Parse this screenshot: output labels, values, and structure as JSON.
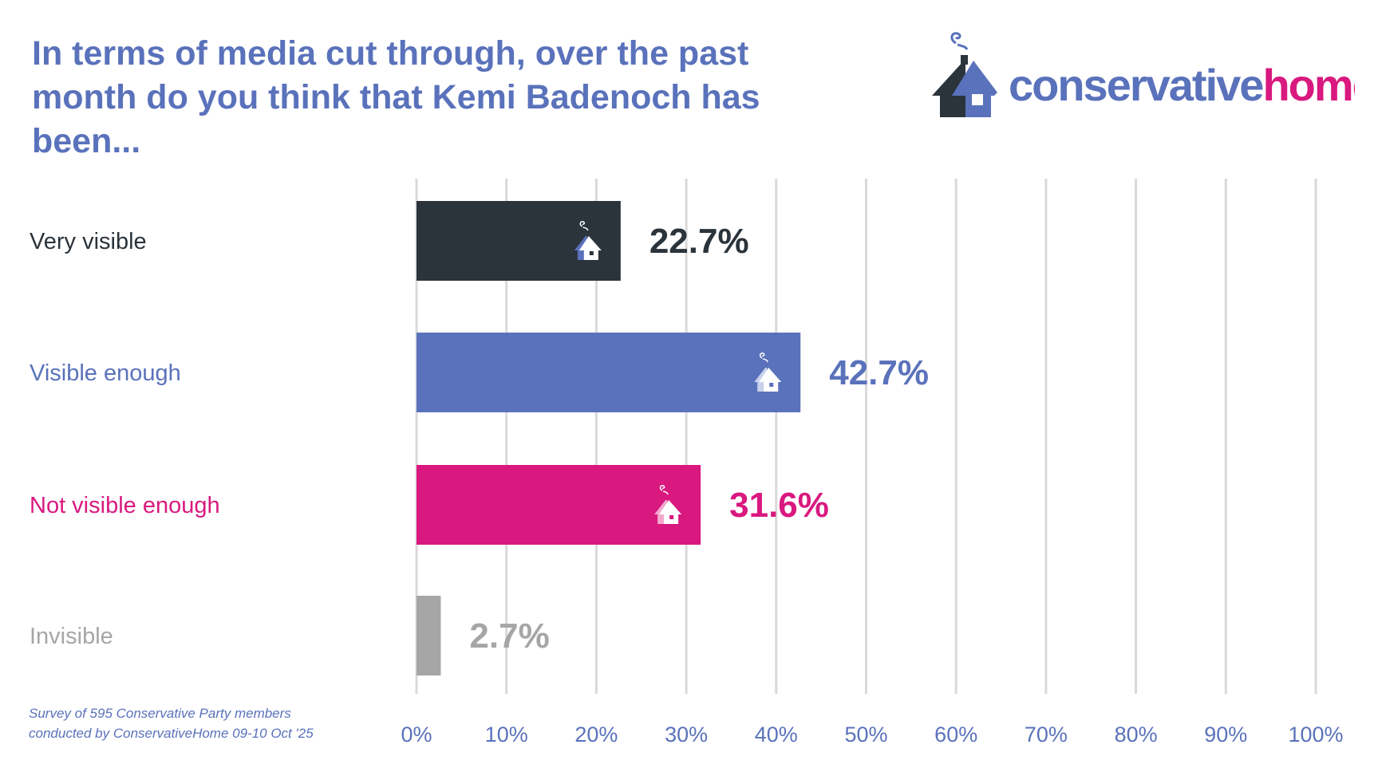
{
  "title": "In terms of media cut through, over the past month do you think that Kemi Badenoch has been...",
  "logo": {
    "text_part1": "conservative",
    "text_part2": "home",
    "color1": "#5a72bb",
    "color2": "#d9197f",
    "house_dark": "#2b333b"
  },
  "footnote": [
    "Survey of 595 Conservative Party members",
    "conducted by ConservativeHome 09-10 Oct '25"
  ],
  "chart_data": {
    "type": "bar",
    "orientation": "horizontal",
    "categories": [
      "Very visible",
      "Visible enough",
      "Not visible enough",
      "Invisible"
    ],
    "values": [
      22.7,
      42.7,
      31.6,
      2.7
    ],
    "data_labels": [
      "22.7%",
      "42.7%",
      "31.6%",
      "2.7%"
    ],
    "colors": [
      "#2b333b",
      "#5a72bb",
      "#d9197f",
      "#a6a6a6"
    ],
    "bar_icon": "house-icon",
    "xlim": [
      0,
      100
    ],
    "xticks": [
      "0%",
      "10%",
      "20%",
      "30%",
      "40%",
      "50%",
      "60%",
      "70%",
      "80%",
      "90%",
      "100%"
    ],
    "grid": true,
    "xlabel": "",
    "ylabel": ""
  }
}
